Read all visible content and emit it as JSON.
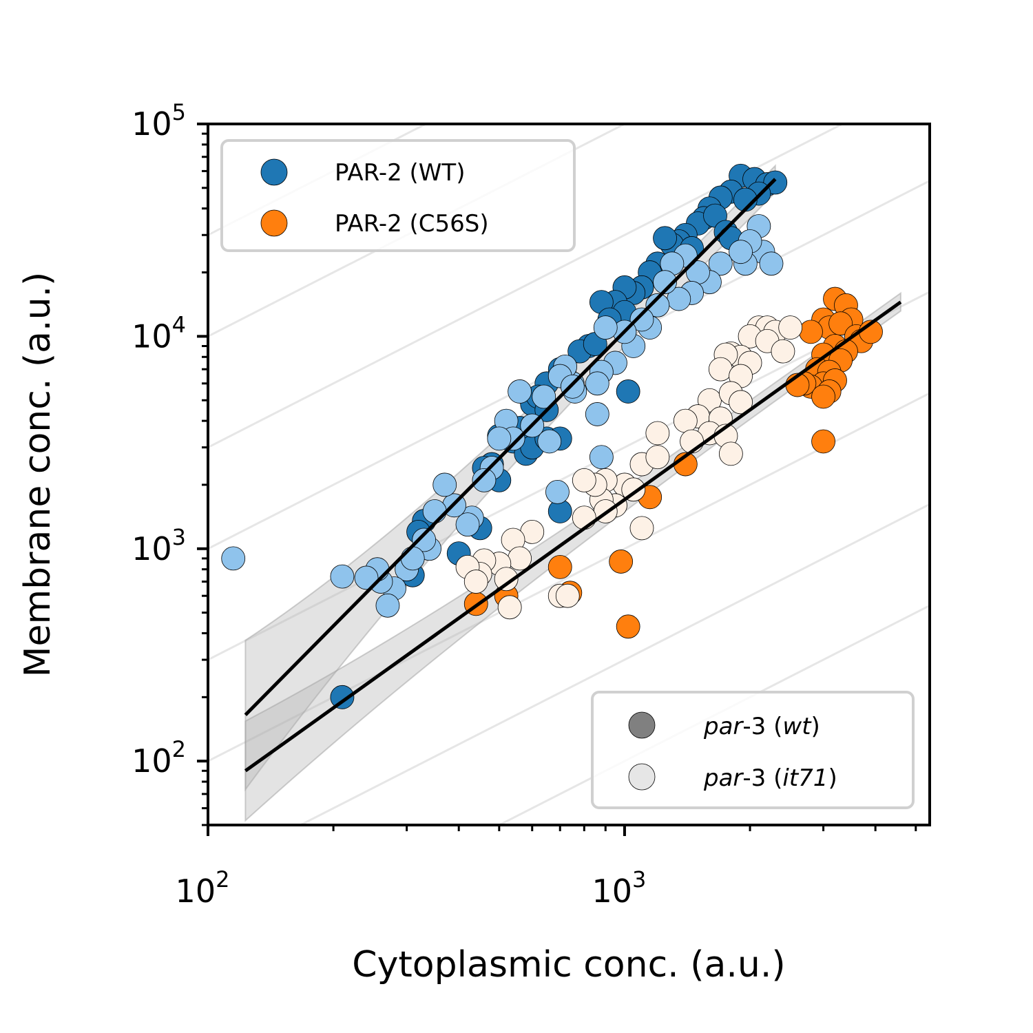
{
  "chart_data": {
    "type": "scatter",
    "x_scale": "log",
    "y_scale": "log",
    "xlabel": "Cytoplasmic conc. (a.u.)",
    "ylabel": "Membrane conc. (a.u.)",
    "xlim": [
      100,
      5400
    ],
    "ylim": [
      50,
      100000
    ],
    "x_major_ticks": [
      {
        "base": "10",
        "exp": "2",
        "value": 100
      },
      {
        "base": "10",
        "exp": "3",
        "value": 1000
      }
    ],
    "y_major_ticks": [
      {
        "base": "10",
        "exp": "2",
        "value": 100
      },
      {
        "base": "10",
        "exp": "3",
        "value": 1000
      },
      {
        "base": "10",
        "exp": "4",
        "value": 10000
      },
      {
        "base": "10",
        "exp": "5",
        "value": 100000
      }
    ],
    "grid": false,
    "background_isolines": {
      "color": "#e6e6e6",
      "slope": 1,
      "ratios": [
        0.1,
        0.3,
        1,
        3,
        10,
        30,
        100,
        300
      ]
    },
    "legend_protein": {
      "placement": "top-left",
      "entries": [
        {
          "label": "PAR-2 (WT)",
          "color": "#1f77b4"
        },
        {
          "label": "PAR-2 (C56S)",
          "color": "#ff7f0e"
        }
      ]
    },
    "legend_background": {
      "placement": "bottom-right",
      "entries": [
        {
          "label_italic_1": "par",
          "label_mid": "-3 (",
          "label_italic_2": "wt",
          "label_end": ")",
          "color": "#808080"
        },
        {
          "label_italic_1": "par",
          "label_mid": "-3 (",
          "label_italic_2": "it71",
          "label_end": ")",
          "color": "#e6e6e6"
        }
      ]
    },
    "fit_lines": [
      {
        "name": "PAR-2 (WT) fit",
        "color": "#000000",
        "x": [
          123,
          2300
        ],
        "y": [
          165,
          55000
        ],
        "band": 0.18
      },
      {
        "name": "PAR-2 (C56S) fit",
        "color": "#000000",
        "x": [
          123,
          4600
        ],
        "y": [
          90,
          14500
        ],
        "band": 0.12
      }
    ],
    "series": [
      {
        "name": "PAR-2 (WT) par-3 (wt)",
        "color": "#1f77b4",
        "points": [
          [
            1900,
            57000
          ],
          [
            2050,
            55000
          ],
          [
            2200,
            52000
          ],
          [
            2300,
            53000
          ],
          [
            1800,
            48000
          ],
          [
            1700,
            45000
          ],
          [
            2100,
            47000
          ],
          [
            1950,
            44000
          ],
          [
            1600,
            40000
          ],
          [
            1550,
            36000
          ],
          [
            1500,
            34000
          ],
          [
            1650,
            37000
          ],
          [
            1750,
            31000
          ],
          [
            1800,
            29000
          ],
          [
            1400,
            30000
          ],
          [
            1350,
            28000
          ],
          [
            1300,
            27000
          ],
          [
            1250,
            29000
          ],
          [
            1450,
            26000
          ],
          [
            1200,
            22000
          ],
          [
            1150,
            20000
          ],
          [
            1100,
            17000
          ],
          [
            1050,
            16000
          ],
          [
            1000,
            17000
          ],
          [
            950,
            14500
          ],
          [
            1000,
            13000
          ],
          [
            880,
            14500
          ],
          [
            920,
            12000
          ],
          [
            820,
            9000
          ],
          [
            780,
            8500
          ],
          [
            850,
            9200
          ],
          [
            700,
            7000
          ],
          [
            720,
            6500
          ],
          [
            650,
            6000
          ],
          [
            600,
            4800
          ],
          [
            620,
            5200
          ],
          [
            650,
            4500
          ],
          [
            560,
            3700
          ],
          [
            500,
            3400
          ],
          [
            540,
            3200
          ],
          [
            580,
            2800
          ],
          [
            600,
            3000
          ],
          [
            650,
            3300
          ],
          [
            700,
            3300
          ],
          [
            480,
            2500
          ],
          [
            500,
            2100
          ],
          [
            460,
            2400
          ],
          [
            1020,
            5500
          ],
          [
            700,
            1500
          ],
          [
            450,
            1250
          ],
          [
            400,
            950
          ],
          [
            330,
            1350
          ],
          [
            320,
            1200
          ],
          [
            310,
            750
          ],
          [
            210,
            200
          ]
        ]
      },
      {
        "name": "PAR-2 (WT) par-3 (it71)",
        "color": "#8fc3ec",
        "points": [
          [
            2100,
            33000
          ],
          [
            2150,
            25000
          ],
          [
            2000,
            28000
          ],
          [
            2250,
            22000
          ],
          [
            1950,
            22000
          ],
          [
            1900,
            25000
          ],
          [
            1700,
            22000
          ],
          [
            1600,
            18000
          ],
          [
            1500,
            20000
          ],
          [
            1450,
            16000
          ],
          [
            1400,
            24000
          ],
          [
            1350,
            15000
          ],
          [
            1300,
            22000
          ],
          [
            1250,
            18000
          ],
          [
            1200,
            14000
          ],
          [
            1150,
            11000
          ],
          [
            1100,
            12000
          ],
          [
            1050,
            9000
          ],
          [
            1000,
            10500
          ],
          [
            950,
            7500
          ],
          [
            900,
            11000
          ],
          [
            880,
            6800
          ],
          [
            860,
            6000
          ],
          [
            750,
            6000
          ],
          [
            760,
            5500
          ],
          [
            720,
            7200
          ],
          [
            700,
            6500
          ],
          [
            640,
            5200
          ],
          [
            600,
            3800
          ],
          [
            560,
            5500
          ],
          [
            520,
            4000
          ],
          [
            540,
            3300
          ],
          [
            660,
            3200
          ],
          [
            500,
            3300
          ],
          [
            860,
            4300
          ],
          [
            880,
            2700
          ],
          [
            480,
            2400
          ],
          [
            460,
            2100
          ],
          [
            430,
            1400
          ],
          [
            420,
            1300
          ],
          [
            390,
            1600
          ],
          [
            370,
            2000
          ],
          [
            350,
            1500
          ],
          [
            340,
            1000
          ],
          [
            330,
            1100
          ],
          [
            300,
            800
          ],
          [
            310,
            900
          ],
          [
            280,
            650
          ],
          [
            260,
            700
          ],
          [
            255,
            800
          ],
          [
            240,
            730
          ],
          [
            210,
            740
          ],
          [
            270,
            540
          ],
          [
            115,
            900
          ],
          [
            690,
            1850
          ],
          [
            750,
            5800
          ]
        ]
      },
      {
        "name": "PAR-2 (C56S) par-3 (wt)",
        "color": "#ff7f0e",
        "points": [
          [
            3200,
            15000
          ],
          [
            3400,
            14000
          ],
          [
            3500,
            12000
          ],
          [
            3000,
            12000
          ],
          [
            3100,
            11000
          ],
          [
            3300,
            11500
          ],
          [
            2800,
            10500
          ],
          [
            3600,
            10000
          ],
          [
            3700,
            9500
          ],
          [
            3900,
            10500
          ],
          [
            3200,
            9000
          ],
          [
            3400,
            8500
          ],
          [
            3000,
            8200
          ],
          [
            3300,
            7700
          ],
          [
            2900,
            7000
          ],
          [
            3100,
            6800
          ],
          [
            3000,
            6000
          ],
          [
            3200,
            6200
          ],
          [
            2800,
            5800
          ],
          [
            2700,
            6000
          ],
          [
            3100,
            5500
          ],
          [
            3000,
            5200
          ],
          [
            2600,
            5900
          ],
          [
            3000,
            3200
          ],
          [
            1400,
            2500
          ],
          [
            1150,
            1750
          ],
          [
            980,
            870
          ],
          [
            1020,
            430
          ],
          [
            700,
            820
          ],
          [
            740,
            620
          ],
          [
            520,
            600
          ],
          [
            440,
            550
          ]
        ]
      },
      {
        "name": "PAR-2 (C56S) par-3 (it71)",
        "color": "#fdf1e6",
        "points": [
          [
            2100,
            11000
          ],
          [
            2200,
            11000
          ],
          [
            2300,
            10500
          ],
          [
            2500,
            11000
          ],
          [
            2000,
            10000
          ],
          [
            2200,
            9500
          ],
          [
            2400,
            8500
          ],
          [
            1800,
            8300
          ],
          [
            1900,
            8000
          ],
          [
            1750,
            8200
          ],
          [
            2000,
            7500
          ],
          [
            1700,
            7000
          ],
          [
            1900,
            6500
          ],
          [
            1600,
            5000
          ],
          [
            1800,
            5400
          ],
          [
            1900,
            4900
          ],
          [
            1500,
            4200
          ],
          [
            1700,
            4100
          ],
          [
            1600,
            3500
          ],
          [
            1750,
            3400
          ],
          [
            1800,
            2800
          ],
          [
            1400,
            4000
          ],
          [
            1450,
            3200
          ],
          [
            1200,
            3500
          ],
          [
            1100,
            2500
          ],
          [
            1200,
            2700
          ],
          [
            1000,
            2000
          ],
          [
            900,
            2100
          ],
          [
            950,
            1600
          ],
          [
            1050,
            1900
          ],
          [
            880,
            1700
          ],
          [
            850,
            2000
          ],
          [
            800,
            2100
          ],
          [
            900,
            1500
          ],
          [
            1100,
            1250
          ],
          [
            800,
            1400
          ],
          [
            600,
            1200
          ],
          [
            540,
            1100
          ],
          [
            560,
            900
          ],
          [
            500,
            850
          ],
          [
            460,
            880
          ],
          [
            450,
            760
          ],
          [
            420,
            820
          ],
          [
            440,
            700
          ],
          [
            520,
            720
          ],
          [
            700,
            600
          ],
          [
            730,
            600
          ],
          [
            530,
            530
          ]
        ]
      }
    ]
  }
}
